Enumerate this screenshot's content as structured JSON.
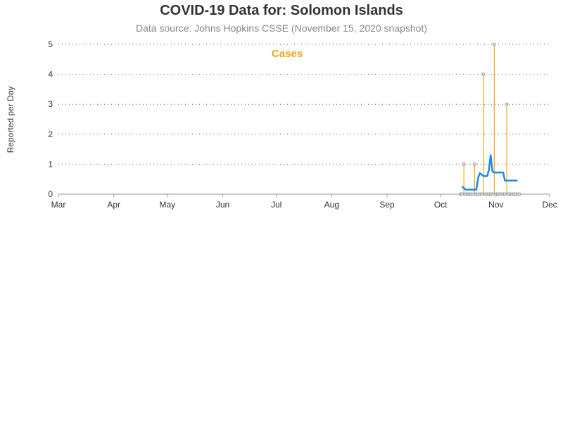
{
  "title": "COVID-19 Data for: Solomon Islands",
  "subtitle": "Data source: Johns Hopkins CSSE (November 15, 2020 snapshot)",
  "chart_data": {
    "type": "line",
    "title": "COVID-19 Data for: Solomon Islands",
    "subtitle": "Data source: Johns Hopkins CSSE (November 15, 2020 snapshot)",
    "xlabel": "",
    "ylabel": "Reported per Day",
    "ylim": [
      0,
      5
    ],
    "yticks": [
      0,
      1,
      2,
      3,
      4,
      5
    ],
    "xlim": [
      "2020-03-01",
      "2020-12-01"
    ],
    "xticks": [
      {
        "date": "2020-03-01",
        "label": "Mar"
      },
      {
        "date": "2020-04-01",
        "label": "Apr"
      },
      {
        "date": "2020-05-01",
        "label": "May"
      },
      {
        "date": "2020-06-01",
        "label": "Jun"
      },
      {
        "date": "2020-07-01",
        "label": "Jul"
      },
      {
        "date": "2020-08-01",
        "label": "Aug"
      },
      {
        "date": "2020-09-01",
        "label": "Sep"
      },
      {
        "date": "2020-10-01",
        "label": "Oct"
      },
      {
        "date": "2020-11-01",
        "label": "Nov"
      },
      {
        "date": "2020-12-01",
        "label": "Dec"
      }
    ],
    "grid": "horizontal dotted",
    "series_label": "Cases",
    "series_label_color": "#f5a31a",
    "colors": {
      "cases_spike": "#f5a31a",
      "marker_fill": "#dddddd",
      "marker_stroke": "#888888",
      "average_line": "#1e88e5",
      "grid": "#555555",
      "axis": "#999999"
    },
    "series": [
      {
        "name": "Cases",
        "style": "needle",
        "x": [
          "2020-10-12",
          "2020-10-13",
          "2020-10-14",
          "2020-10-15",
          "2020-10-16",
          "2020-10-17",
          "2020-10-18",
          "2020-10-19",
          "2020-10-20",
          "2020-10-21",
          "2020-10-22",
          "2020-10-23",
          "2020-10-24",
          "2020-10-25",
          "2020-10-26",
          "2020-10-27",
          "2020-10-28",
          "2020-10-29",
          "2020-10-30",
          "2020-10-31",
          "2020-11-01",
          "2020-11-02",
          "2020-11-03",
          "2020-11-04",
          "2020-11-05",
          "2020-11-06",
          "2020-11-07",
          "2020-11-08",
          "2020-11-09",
          "2020-11-10",
          "2020-11-11",
          "2020-11-12",
          "2020-11-13",
          "2020-11-14"
        ],
        "values": [
          0,
          0,
          1,
          0,
          0,
          0,
          0,
          0,
          1,
          0,
          0,
          0,
          0,
          4,
          0,
          0,
          0,
          0,
          0,
          5,
          0,
          0,
          0,
          0,
          0,
          0,
          3,
          0,
          0,
          0,
          0,
          0,
          0,
          0
        ]
      },
      {
        "name": "",
        "style": "moving-average",
        "x": [
          "2020-10-13",
          "2020-10-14",
          "2020-10-15",
          "2020-10-16",
          "2020-10-17",
          "2020-10-18",
          "2020-10-19",
          "2020-10-20",
          "2020-10-21",
          "2020-10-22",
          "2020-10-23",
          "2020-10-24",
          "2020-10-25",
          "2020-10-26",
          "2020-10-27",
          "2020-10-28",
          "2020-10-29",
          "2020-10-30",
          "2020-10-31",
          "2020-11-01",
          "2020-11-02",
          "2020-11-03",
          "2020-11-04",
          "2020-11-05",
          "2020-11-06",
          "2020-11-07",
          "2020-11-08",
          "2020-11-09",
          "2020-11-10",
          "2020-11-11",
          "2020-11-12",
          "2020-11-13"
        ],
        "values": [
          0.25,
          0.2,
          0.15,
          0.15,
          0.15,
          0.15,
          0.15,
          0.15,
          0.15,
          0.55,
          0.7,
          0.65,
          0.6,
          0.6,
          0.6,
          0.8,
          1.3,
          0.75,
          0.72,
          0.72,
          0.72,
          0.72,
          0.72,
          0.72,
          0.45,
          0.45,
          0.45,
          0.45,
          0.45,
          0.45,
          0.45,
          0.45
        ]
      }
    ]
  }
}
